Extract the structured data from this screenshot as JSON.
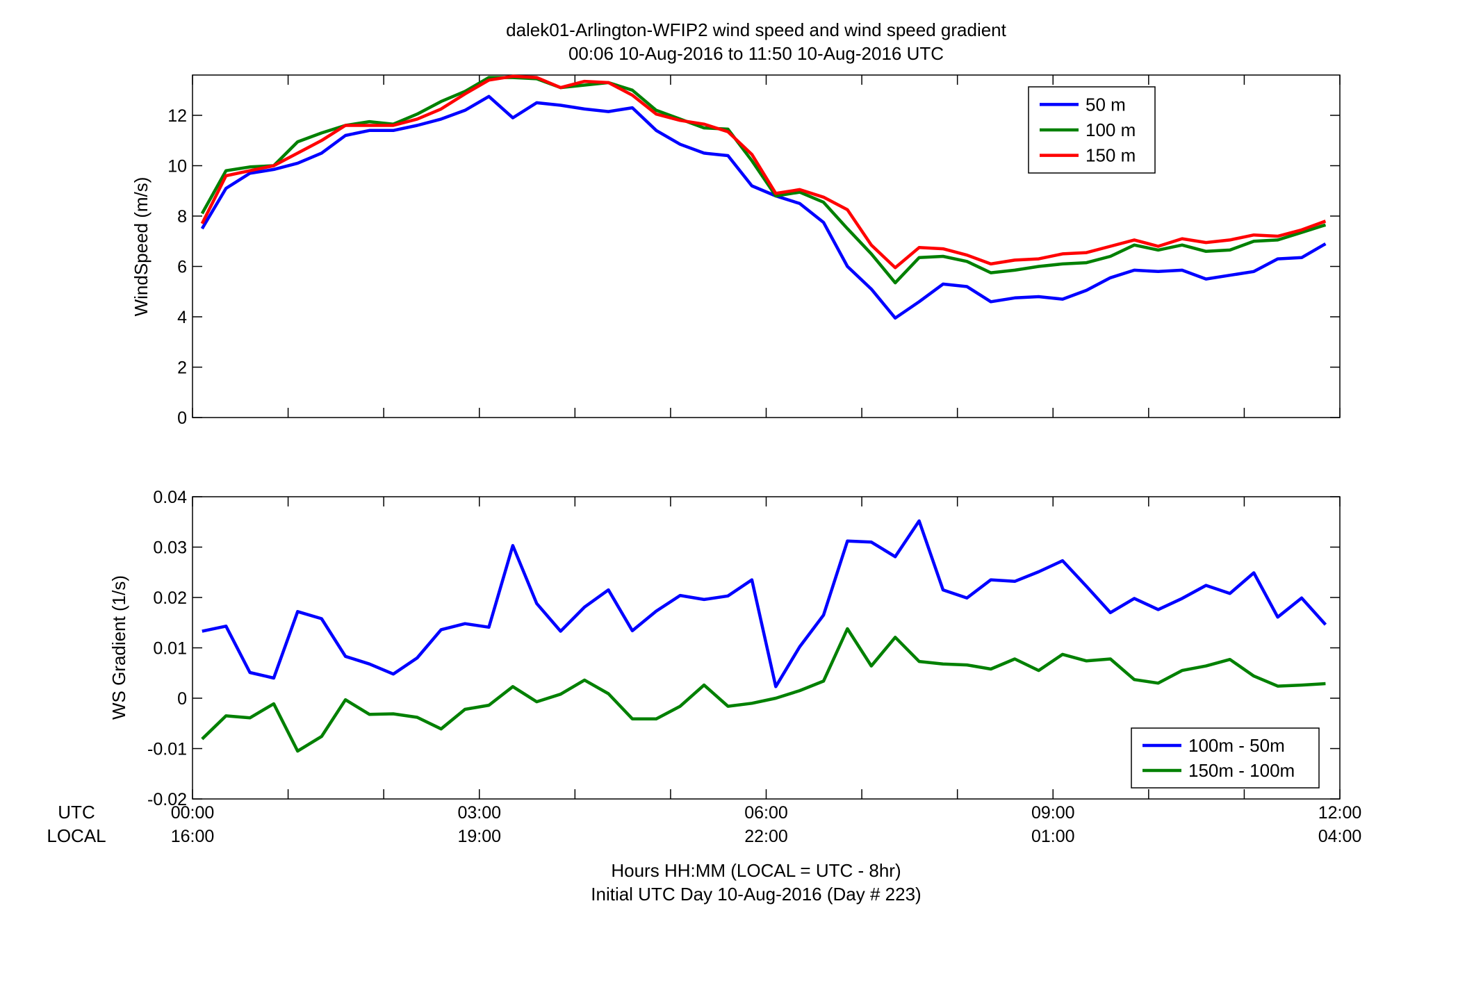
{
  "figure": {
    "title_line1": "dalek01-Arlington-WFIP2  wind speed and wind speed gradient",
    "title_line2": "00:06 10-Aug-2016 to 11:50 10-Aug-2016  UTC",
    "xlabel_line1": "Hours HH:MM  (LOCAL = UTC - 8hr)",
    "xlabel_line2": "Initial UTC Day 10-Aug-2016 (Day # 223)",
    "row_label_utc": "UTC",
    "row_label_local": "LOCAL",
    "xtick_utc": [
      "00:00",
      "03:00",
      "06:00",
      "09:00",
      "12:00"
    ],
    "xtick_local": [
      "16:00",
      "19:00",
      "22:00",
      "01:00",
      "04:00"
    ]
  },
  "chart_data": [
    {
      "type": "line",
      "ylabel": "WindSpeed (m/s)",
      "xlim": [
        0,
        12
      ],
      "ylim": [
        0,
        13.6
      ],
      "yticks": [
        0,
        2,
        4,
        6,
        8,
        10,
        12
      ],
      "ytick_labels": [
        "0",
        "2",
        "4",
        "6",
        "8",
        "10",
        "12"
      ],
      "legend": "top-right",
      "x": [
        0.1,
        0.35,
        0.6,
        0.85,
        1.1,
        1.35,
        1.6,
        1.85,
        2.1,
        2.35,
        2.6,
        2.85,
        3.1,
        3.35,
        3.6,
        3.85,
        4.1,
        4.35,
        4.6,
        4.85,
        5.1,
        5.35,
        5.6,
        5.85,
        6.1,
        6.35,
        6.6,
        6.85,
        7.1,
        7.35,
        7.6,
        7.85,
        8.1,
        8.35,
        8.6,
        8.85,
        9.1,
        9.35,
        9.6,
        9.85,
        10.1,
        10.35,
        10.6,
        10.85,
        11.1,
        11.35,
        11.6,
        11.85
      ],
      "series": [
        {
          "name": "50 m",
          "color": "#0000ff",
          "values": [
            7.5,
            9.1,
            9.7,
            9.85,
            10.1,
            10.5,
            11.2,
            11.4,
            11.4,
            11.6,
            11.85,
            12.2,
            12.75,
            11.9,
            12.5,
            12.4,
            12.25,
            12.15,
            12.3,
            11.4,
            10.85,
            10.5,
            10.4,
            9.2,
            8.8,
            8.5,
            7.75,
            6.0,
            5.1,
            3.95,
            4.6,
            5.3,
            5.2,
            4.6,
            4.75,
            4.8,
            4.7,
            5.05,
            5.55,
            5.85,
            5.8,
            5.85,
            5.5,
            5.65,
            5.8,
            6.3,
            6.35,
            6.9
          ]
        },
        {
          "name": "100 m",
          "color": "#008000",
          "values": [
            8.1,
            9.8,
            9.95,
            10.0,
            10.95,
            11.3,
            11.6,
            11.75,
            11.65,
            12.05,
            12.55,
            12.95,
            13.5,
            13.5,
            13.45,
            13.1,
            13.2,
            13.3,
            13.0,
            12.2,
            11.85,
            11.5,
            11.45,
            10.2,
            8.8,
            8.95,
            8.55,
            7.5,
            6.5,
            5.35,
            6.35,
            6.4,
            6.2,
            5.75,
            5.85,
            6.0,
            6.1,
            6.15,
            6.4,
            6.85,
            6.65,
            6.85,
            6.6,
            6.65,
            7.0,
            7.05,
            7.35,
            7.65
          ]
        },
        {
          "name": "150 m",
          "color": "#ff0000",
          "values": [
            7.7,
            9.6,
            9.8,
            10.0,
            10.5,
            11.0,
            11.6,
            11.6,
            11.6,
            11.85,
            12.25,
            12.85,
            13.4,
            13.55,
            13.5,
            13.1,
            13.35,
            13.3,
            12.8,
            12.05,
            11.8,
            11.65,
            11.35,
            10.45,
            8.9,
            9.05,
            8.75,
            8.25,
            6.85,
            5.95,
            6.75,
            6.7,
            6.45,
            6.1,
            6.25,
            6.3,
            6.5,
            6.55,
            6.8,
            7.05,
            6.8,
            7.1,
            6.95,
            7.05,
            7.25,
            7.2,
            7.45,
            7.8
          ]
        }
      ]
    },
    {
      "type": "line",
      "ylabel": "WS Gradient (1/s)",
      "xlim": [
        0,
        12
      ],
      "ylim": [
        -0.02,
        0.04
      ],
      "yticks": [
        -0.02,
        -0.01,
        0,
        0.01,
        0.02,
        0.03,
        0.04
      ],
      "ytick_labels": [
        "-0.02",
        "-0.01",
        "0",
        "0.01",
        "0.02",
        "0.03",
        "0.04"
      ],
      "legend": "bottom-right",
      "x": [
        0.1,
        0.35,
        0.6,
        0.85,
        1.1,
        1.35,
        1.6,
        1.85,
        2.1,
        2.35,
        2.6,
        2.85,
        3.1,
        3.35,
        3.6,
        3.85,
        4.1,
        4.35,
        4.6,
        4.85,
        5.1,
        5.35,
        5.6,
        5.85,
        6.1,
        6.35,
        6.6,
        6.85,
        7.1,
        7.35,
        7.6,
        7.85,
        8.1,
        8.35,
        8.6,
        8.85,
        9.1,
        9.35,
        9.6,
        9.85,
        10.1,
        10.35,
        10.6,
        10.85,
        11.1,
        11.35,
        11.6,
        11.85
      ],
      "series": [
        {
          "name": "100m - 50m",
          "color": "#0000ff",
          "values": [
            0.0133,
            0.0143,
            0.0051,
            0.004,
            0.0172,
            0.0158,
            0.0083,
            0.0068,
            0.0048,
            0.008,
            0.0136,
            0.0148,
            0.0141,
            0.0303,
            0.0188,
            0.0133,
            0.0181,
            0.0215,
            0.0134,
            0.0173,
            0.0204,
            0.0196,
            0.0203,
            0.0235,
            0.0023,
            0.0102,
            0.0165,
            0.0312,
            0.031,
            0.0281,
            0.0352,
            0.0215,
            0.0199,
            0.0235,
            0.0232,
            0.0251,
            0.0273,
            0.0222,
            0.017,
            0.0198,
            0.0176,
            0.0198,
            0.0224,
            0.0208,
            0.0249,
            0.0161,
            0.0199,
            0.0146
          ]
        },
        {
          "name": "150m - 100m",
          "color": "#008000",
          "values": [
            -0.0081,
            -0.0035,
            -0.0039,
            -0.0011,
            -0.0105,
            -0.0076,
            -0.0003,
            -0.0032,
            -0.0031,
            -0.0038,
            -0.0061,
            -0.0022,
            -0.0014,
            0.0023,
            -0.0007,
            0.0008,
            0.0036,
            0.0009,
            -0.0041,
            -0.0041,
            -0.0016,
            0.0026,
            -0.0016,
            -0.001,
            0.0,
            0.0015,
            0.0034,
            0.0138,
            0.0064,
            0.0121,
            0.0073,
            0.0068,
            0.0066,
            0.0058,
            0.0078,
            0.0055,
            0.0087,
            0.0074,
            0.0078,
            0.0037,
            0.003,
            0.0055,
            0.0064,
            0.0077,
            0.0044,
            0.0024,
            0.0026,
            0.0029
          ]
        }
      ]
    }
  ]
}
